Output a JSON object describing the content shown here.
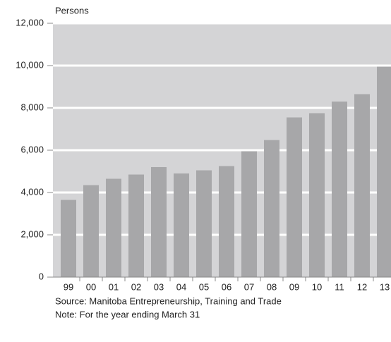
{
  "chart_data": {
    "type": "bar",
    "y_label": "Persons",
    "categories": [
      "99",
      "00",
      "01",
      "02",
      "03",
      "04",
      "05",
      "06",
      "07",
      "08",
      "09",
      "10",
      "11",
      "12",
      "13"
    ],
    "values": [
      3650,
      4350,
      4650,
      4850,
      5200,
      4900,
      5050,
      5250,
      5950,
      6480,
      7550,
      7750,
      8300,
      8650,
      9950
    ],
    "color": "#a7a7a9",
    "ylim": [
      0,
      12000
    ],
    "yticks": [
      0,
      {
        "value": 2000,
        "label": "2,000"
      },
      {
        "value": 4000,
        "label": "4,000"
      },
      {
        "value": 6000,
        "label": "6,000"
      },
      {
        "value": 8000,
        "label": "8,000"
      },
      {
        "value": 10000,
        "label": "10,000"
      },
      {
        "value": 12000,
        "label": "12,000"
      }
    ],
    "grid": true,
    "source": "Source: Manitoba Entrepreneurship, Training and Trade",
    "note": "Note: For the year ending March 31"
  }
}
